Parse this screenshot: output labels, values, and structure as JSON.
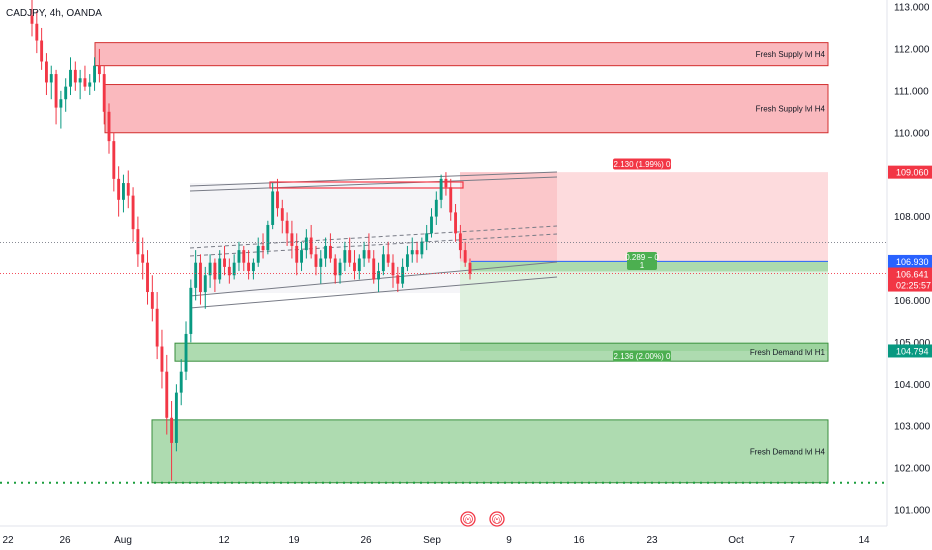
{
  "chart_data": {
    "type": "candlestick",
    "symbol_label": "CADJPY, 4h, OANDA",
    "y_axis": {
      "range": [
        100.5,
        113.2
      ],
      "ticks": [
        "113.000",
        "112.000",
        "111.000",
        "110.000",
        "109.000",
        "108.000",
        "107.000",
        "106.000",
        "105.000",
        "104.000",
        "103.000",
        "102.000",
        "101.000"
      ]
    },
    "x_axis": {
      "ticks": [
        "22",
        "26",
        "Aug",
        "12",
        "19",
        "26",
        "Sep",
        "9",
        "16",
        "23",
        "Oct",
        "7",
        "14"
      ]
    },
    "price_tags": [
      {
        "text": "109.060",
        "value": 109.06,
        "color": "#f23645"
      },
      {
        "text": "106.930",
        "value": 106.93,
        "color": "#2962ff"
      },
      {
        "text": "106.641",
        "value": 106.641,
        "color": "#f23645",
        "sub": "02:25:57"
      },
      {
        "text": "104.794",
        "value": 104.794,
        "color": "#089981"
      }
    ],
    "zones": [
      {
        "label": "Fresh Supply lvl H4",
        "kind": "supply",
        "top": 112.15,
        "bottom": 111.6
      },
      {
        "label": "Fresh Supply lvl H4",
        "kind": "supply",
        "top": 111.15,
        "bottom": 110.0
      },
      {
        "label": "Fresh Demand lvl H1",
        "kind": "demand",
        "top": 104.98,
        "bottom": 104.55
      },
      {
        "label": "Fresh Demand lvl H4",
        "kind": "demand",
        "top": 103.15,
        "bottom": 101.65
      }
    ],
    "short_position": {
      "entry": 106.93,
      "stop": 109.06,
      "target": 104.794,
      "stop_label": "2.130 (1.99%) 0",
      "target_label": "2.136 (2.00%) 0",
      "open_label_1": "0.289 − 0",
      "open_label_2": "1"
    },
    "support_level": 101.65,
    "event_markers": [
      "(•)",
      "(•)"
    ],
    "candles": [
      [
        112.8,
        113.2,
        112.3,
        112.6
      ],
      [
        112.6,
        112.9,
        111.9,
        112.2
      ],
      [
        112.2,
        112.5,
        111.5,
        111.7
      ],
      [
        111.7,
        111.9,
        110.9,
        111.2
      ],
      [
        111.2,
        111.6,
        110.8,
        111.4
      ],
      [
        111.4,
        111.5,
        110.2,
        110.6
      ],
      [
        110.6,
        111.0,
        110.1,
        110.8
      ],
      [
        110.8,
        111.3,
        110.5,
        111.1
      ],
      [
        111.1,
        111.8,
        110.9,
        111.5
      ],
      [
        111.5,
        111.7,
        111.0,
        111.2
      ],
      [
        111.2,
        111.5,
        110.8,
        111.3
      ],
      [
        111.3,
        111.6,
        111.0,
        111.1
      ],
      [
        111.1,
        111.4,
        110.9,
        111.2
      ],
      [
        111.2,
        111.8,
        111.0,
        111.6
      ],
      [
        111.6,
        112.0,
        111.2,
        111.4
      ],
      [
        111.4,
        111.6,
        110.2,
        110.5
      ],
      [
        110.5,
        110.7,
        109.5,
        109.8
      ],
      [
        109.8,
        110.0,
        108.6,
        108.9
      ],
      [
        108.9,
        109.2,
        108.0,
        108.4
      ],
      [
        108.4,
        109.0,
        108.1,
        108.8
      ],
      [
        108.8,
        109.1,
        108.2,
        108.5
      ],
      [
        108.5,
        108.7,
        107.4,
        107.7
      ],
      [
        107.7,
        108.0,
        106.8,
        107.1
      ],
      [
        107.1,
        107.5,
        106.5,
        106.9
      ],
      [
        106.9,
        107.2,
        105.9,
        106.2
      ],
      [
        106.2,
        106.6,
        105.5,
        105.8
      ],
      [
        105.8,
        106.2,
        104.6,
        104.9
      ],
      [
        104.9,
        105.3,
        103.9,
        104.3
      ],
      [
        104.3,
        104.7,
        102.8,
        103.2
      ],
      [
        103.2,
        103.6,
        101.7,
        102.6
      ],
      [
        102.6,
        104.0,
        102.4,
        103.8
      ],
      [
        103.8,
        104.6,
        103.5,
        104.3
      ],
      [
        104.3,
        105.5,
        104.1,
        105.2
      ],
      [
        105.2,
        106.5,
        105.0,
        106.3
      ],
      [
        106.3,
        107.2,
        106.0,
        106.9
      ],
      [
        106.9,
        107.1,
        105.9,
        106.2
      ],
      [
        106.2,
        106.8,
        105.8,
        106.6
      ],
      [
        106.6,
        107.1,
        106.3,
        106.9
      ],
      [
        106.9,
        107.0,
        106.2,
        106.5
      ],
      [
        106.5,
        107.2,
        106.4,
        107.0
      ],
      [
        107.0,
        107.3,
        106.6,
        106.8
      ],
      [
        106.8,
        107.0,
        106.4,
        106.6
      ],
      [
        106.6,
        107.1,
        106.5,
        106.9
      ],
      [
        106.9,
        107.4,
        106.7,
        107.2
      ],
      [
        107.2,
        107.3,
        106.7,
        106.9
      ],
      [
        106.9,
        107.2,
        106.5,
        106.7
      ],
      [
        106.7,
        107.0,
        106.5,
        106.9
      ],
      [
        106.9,
        107.5,
        106.8,
        107.3
      ],
      [
        107.3,
        107.6,
        107.0,
        107.2
      ],
      [
        107.2,
        107.9,
        107.1,
        107.8
      ],
      [
        107.8,
        108.8,
        107.7,
        108.6
      ],
      [
        108.6,
        108.9,
        108.0,
        108.2
      ],
      [
        108.2,
        108.4,
        107.6,
        107.9
      ],
      [
        107.9,
        108.1,
        107.3,
        107.6
      ],
      [
        107.6,
        107.9,
        107.0,
        107.3
      ],
      [
        107.3,
        107.6,
        106.6,
        106.9
      ],
      [
        106.9,
        107.4,
        106.7,
        107.2
      ],
      [
        107.2,
        107.7,
        107.0,
        107.5
      ],
      [
        107.5,
        107.8,
        107.0,
        107.1
      ],
      [
        107.1,
        107.3,
        106.6,
        106.8
      ],
      [
        106.8,
        107.2,
        106.4,
        107.0
      ],
      [
        107.0,
        107.5,
        106.8,
        107.3
      ],
      [
        107.3,
        107.6,
        106.9,
        107.0
      ],
      [
        107.0,
        107.1,
        106.4,
        106.6
      ],
      [
        106.6,
        107.0,
        106.4,
        106.9
      ],
      [
        106.9,
        107.4,
        106.7,
        107.2
      ],
      [
        107.2,
        107.5,
        106.8,
        106.9
      ],
      [
        106.9,
        107.2,
        106.5,
        106.7
      ],
      [
        106.7,
        107.1,
        106.5,
        107.0
      ],
      [
        107.0,
        107.4,
        106.8,
        107.2
      ],
      [
        107.2,
        107.6,
        106.9,
        107.0
      ],
      [
        107.0,
        107.2,
        106.4,
        106.5
      ],
      [
        106.5,
        106.9,
        106.2,
        106.7
      ],
      [
        106.7,
        107.3,
        106.6,
        107.1
      ],
      [
        107.1,
        107.4,
        106.8,
        106.9
      ],
      [
        106.9,
        107.1,
        106.3,
        106.6
      ],
      [
        106.6,
        106.8,
        106.2,
        106.4
      ],
      [
        106.4,
        107.0,
        106.3,
        106.8
      ],
      [
        106.8,
        107.3,
        106.7,
        107.1
      ],
      [
        107.1,
        107.5,
        106.9,
        107.2
      ],
      [
        107.2,
        107.4,
        106.9,
        107.1
      ],
      [
        107.1,
        107.5,
        107.0,
        107.4
      ],
      [
        107.4,
        107.8,
        107.2,
        107.6
      ],
      [
        107.6,
        108.2,
        107.5,
        108.0
      ],
      [
        108.0,
        108.6,
        107.8,
        108.4
      ],
      [
        108.4,
        109.0,
        108.2,
        108.9
      ],
      [
        108.9,
        109.06,
        108.5,
        108.7
      ],
      [
        108.7,
        108.9,
        107.9,
        108.1
      ],
      [
        108.1,
        108.3,
        107.4,
        107.6
      ],
      [
        107.6,
        107.8,
        107.0,
        107.2
      ],
      [
        107.2,
        107.4,
        106.8,
        106.9
      ],
      [
        106.9,
        107.0,
        106.5,
        106.64
      ]
    ]
  }
}
